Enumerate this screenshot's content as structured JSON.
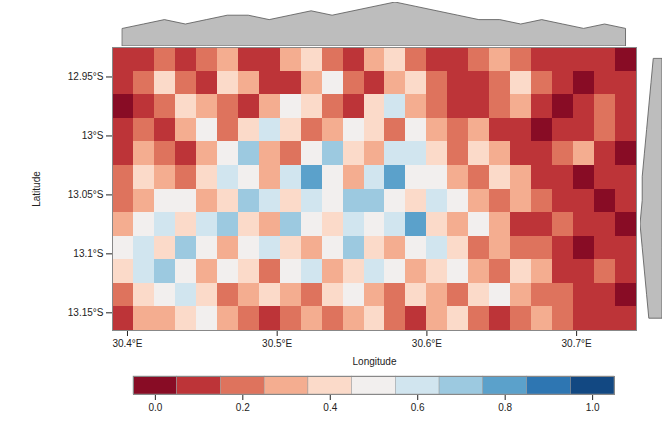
{
  "chart_data": {
    "type": "heatmap",
    "xlabel": "Longitude",
    "ylabel": "Latitude",
    "xlim": [
      30.39,
      30.74
    ],
    "ylim": [
      -13.165,
      -12.925
    ],
    "xticks": [
      {
        "value": 30.4,
        "label": "30.4°E"
      },
      {
        "value": 30.5,
        "label": "30.5°E"
      },
      {
        "value": 30.6,
        "label": "30.6°E"
      },
      {
        "value": 30.7,
        "label": "30.7°E"
      }
    ],
    "yticks": [
      {
        "value": -12.95,
        "label": "12.95°S"
      },
      {
        "value": -13,
        "label": "13°S"
      },
      {
        "value": -13.05,
        "label": "13.05°S"
      },
      {
        "value": -13.1,
        "label": "13.1°S"
      },
      {
        "value": -13.15,
        "label": "13.15°S"
      }
    ],
    "lon_edges": [
      30.39,
      30.404,
      30.418,
      30.432,
      30.446,
      30.46,
      30.474,
      30.488,
      30.502,
      30.516,
      30.53,
      30.544,
      30.558,
      30.572,
      30.586,
      30.6,
      30.614,
      30.628,
      30.642,
      30.656,
      30.67,
      30.684,
      30.698,
      30.712,
      30.726,
      30.74
    ],
    "lat_edges": [
      -12.925,
      -12.945,
      -12.965,
      -12.985,
      -13.005,
      -13.025,
      -13.045,
      -13.065,
      -13.085,
      -13.105,
      -13.125,
      -13.145,
      -13.165
    ],
    "cells": [
      [
        0.05,
        0.1,
        0.15,
        0.05,
        0.2,
        0.3,
        0.1,
        0.05,
        0.25,
        0.35,
        0.15,
        0.1,
        0.3,
        0.4,
        0.2,
        0.1,
        0.05,
        0.15,
        0.3,
        0.2,
        0.1,
        0.05,
        0.1,
        0.05,
        0.0
      ],
      [
        0.1,
        0.2,
        0.35,
        0.15,
        0.1,
        0.4,
        0.25,
        0.1,
        0.05,
        0.3,
        0.45,
        0.2,
        0.1,
        0.25,
        0.35,
        0.15,
        0.05,
        0.1,
        0.2,
        0.35,
        0.15,
        0.05,
        0.0,
        0.1,
        0.05
      ],
      [
        0.0,
        0.05,
        0.2,
        0.4,
        0.25,
        0.15,
        0.05,
        0.3,
        0.5,
        0.35,
        0.2,
        0.1,
        0.4,
        0.55,
        0.3,
        0.2,
        0.1,
        0.05,
        0.15,
        0.25,
        0.1,
        0.0,
        0.05,
        0.15,
        0.1
      ],
      [
        0.05,
        0.15,
        0.1,
        0.3,
        0.45,
        0.2,
        0.35,
        0.6,
        0.4,
        0.15,
        0.3,
        0.5,
        0.35,
        0.2,
        0.45,
        0.3,
        0.15,
        0.25,
        0.1,
        0.05,
        0.0,
        0.05,
        0.1,
        0.2,
        0.05
      ],
      [
        0.1,
        0.3,
        0.2,
        0.05,
        0.25,
        0.5,
        0.65,
        0.3,
        0.2,
        0.45,
        0.7,
        0.4,
        0.25,
        0.55,
        0.6,
        0.35,
        0.2,
        0.4,
        0.3,
        0.1,
        0.05,
        0.15,
        0.25,
        0.1,
        0.0
      ],
      [
        0.2,
        0.4,
        0.3,
        0.15,
        0.35,
        0.6,
        0.45,
        0.25,
        0.55,
        0.75,
        0.5,
        0.3,
        0.6,
        0.8,
        0.45,
        0.5,
        0.3,
        0.2,
        0.35,
        0.25,
        0.1,
        0.05,
        0.0,
        0.05,
        0.1
      ],
      [
        0.15,
        0.25,
        0.45,
        0.5,
        0.3,
        0.4,
        0.7,
        0.55,
        0.35,
        0.6,
        0.45,
        0.65,
        0.7,
        0.5,
        0.35,
        0.6,
        0.45,
        0.3,
        0.15,
        0.3,
        0.2,
        0.1,
        0.05,
        0.0,
        0.05
      ],
      [
        0.3,
        0.5,
        0.6,
        0.35,
        0.55,
        0.65,
        0.4,
        0.3,
        0.7,
        0.5,
        0.35,
        0.55,
        0.45,
        0.6,
        0.75,
        0.4,
        0.3,
        0.5,
        0.25,
        0.1,
        0.05,
        0.15,
        0.1,
        0.05,
        0.0
      ],
      [
        0.45,
        0.6,
        0.4,
        0.7,
        0.5,
        0.3,
        0.45,
        0.6,
        0.4,
        0.25,
        0.5,
        0.65,
        0.35,
        0.3,
        0.5,
        0.55,
        0.35,
        0.2,
        0.3,
        0.15,
        0.2,
        0.05,
        0.0,
        0.1,
        0.05
      ],
      [
        0.35,
        0.55,
        0.65,
        0.45,
        0.3,
        0.5,
        0.35,
        0.2,
        0.45,
        0.55,
        0.3,
        0.4,
        0.6,
        0.45,
        0.25,
        0.4,
        0.5,
        0.3,
        0.15,
        0.35,
        0.25,
        0.1,
        0.05,
        0.15,
        0.1
      ],
      [
        0.2,
        0.4,
        0.5,
        0.6,
        0.35,
        0.2,
        0.3,
        0.4,
        0.25,
        0.15,
        0.35,
        0.5,
        0.3,
        0.2,
        0.4,
        0.3,
        0.2,
        0.35,
        0.45,
        0.3,
        0.15,
        0.2,
        0.1,
        0.05,
        0.0
      ],
      [
        0.1,
        0.3,
        0.25,
        0.4,
        0.5,
        0.3,
        0.15,
        0.1,
        0.2,
        0.3,
        0.15,
        0.25,
        0.4,
        0.2,
        0.1,
        0.25,
        0.35,
        0.2,
        0.1,
        0.2,
        0.3,
        0.15,
        0.05,
        0.1,
        0.05
      ]
    ],
    "colorbar": {
      "range": [
        -0.05,
        1.05
      ],
      "levels": [
        -0.05,
        0.05,
        0.15,
        0.25,
        0.35,
        0.45,
        0.55,
        0.65,
        0.75,
        0.85,
        0.95,
        1.05
      ],
      "ticks": [
        {
          "value": 0,
          "label": "0.0"
        },
        0.2,
        0.4,
        0.6,
        0.8,
        {
          "value": 1,
          "label": "1.0"
        }
      ]
    },
    "top_profile": {
      "lon": [
        30.397,
        30.411,
        30.425,
        30.439,
        30.453,
        30.467,
        30.481,
        30.495,
        30.509,
        30.523,
        30.537,
        30.551,
        30.565,
        30.579,
        30.593,
        30.607,
        30.621,
        30.635,
        30.649,
        30.663,
        30.677,
        30.691,
        30.705,
        30.719,
        30.733
      ],
      "values": [
        0.2,
        0.25,
        0.3,
        0.25,
        0.3,
        0.35,
        0.35,
        0.3,
        0.35,
        0.4,
        0.35,
        0.4,
        0.45,
        0.5,
        0.45,
        0.4,
        0.35,
        0.3,
        0.3,
        0.25,
        0.3,
        0.25,
        0.2,
        0.25,
        0.2
      ]
    },
    "right_profile": {
      "lat": [
        -12.935,
        -12.955,
        -12.975,
        -12.995,
        -13.015,
        -13.035,
        -13.055,
        -13.075,
        -13.095,
        -13.115,
        -13.135,
        -13.155
      ],
      "values": [
        0.2,
        0.25,
        0.3,
        0.35,
        0.4,
        0.45,
        0.45,
        0.5,
        0.45,
        0.4,
        0.35,
        0.3
      ]
    }
  }
}
